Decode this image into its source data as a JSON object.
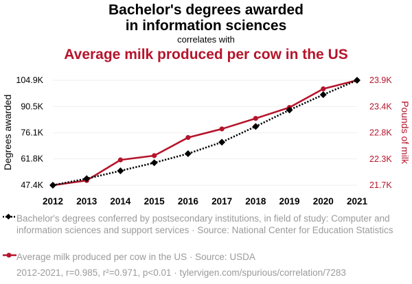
{
  "header": {
    "title_line1": "Bachelor's degrees awarded",
    "title_line2": "in information sciences",
    "connector": "correlates with",
    "subtitle": "Average milk produced per cow in the US"
  },
  "legend": {
    "series1_text": "Bachelor's degrees conferred by postsecondary institutions, in field of study: Computer and information sciences and support services · Source: National Center for Education Statistics",
    "series2_text": "Average milk produced per cow in the US · Source: USDA"
  },
  "footer": {
    "stats": "2012-2021, r=0.985, r²=0.971, p<0.01 · tylervigen.com/spurious/correlation/7283"
  },
  "colors": {
    "series1": "#000000",
    "series2": "#b5142b",
    "grid": "#eeeeee"
  },
  "chart_data": {
    "type": "line",
    "x": [
      2012,
      2013,
      2014,
      2015,
      2016,
      2017,
      2018,
      2019,
      2020,
      2021
    ],
    "x_ticks": [
      "2012",
      "2013",
      "2014",
      "2015",
      "2016",
      "2017",
      "2018",
      "2019",
      "2020",
      "2021"
    ],
    "xlim": [
      2012,
      2021
    ],
    "ylabel_left": "Degrees awarded",
    "ylabel_right": "Pounds of milk",
    "y_left_ticks": [
      "47.4K",
      "61.8K",
      "76.1K",
      "90.5K",
      "104.9K"
    ],
    "y_left_tick_values": [
      47400,
      61800,
      76100,
      90500,
      104900
    ],
    "ylim_left": [
      47400,
      104900
    ],
    "y_right_ticks": [
      "21.7K",
      "22.3K",
      "22.8K",
      "23.4K",
      "23.9K"
    ],
    "y_right_tick_values": [
      21700,
      22250,
      22800,
      23350,
      23900
    ],
    "ylim_right": [
      21700,
      23900
    ],
    "grid": true,
    "series": [
      {
        "axis": "left",
        "style": "dotted",
        "marker": "diamond",
        "values": [
          47400,
          51000,
          55300,
          59700,
          64700,
          71000,
          79600,
          88600,
          97000,
          104900
        ]
      },
      {
        "axis": "right",
        "style": "solid",
        "marker": "circle",
        "values": [
          21700,
          21800,
          22230,
          22320,
          22700,
          22880,
          23100,
          23330,
          23720,
          23900
        ]
      }
    ]
  }
}
